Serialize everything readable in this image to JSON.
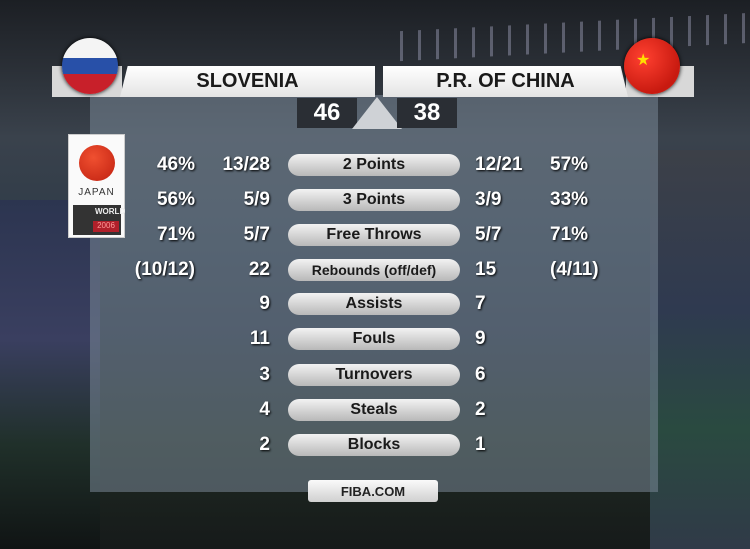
{
  "teams": {
    "left": {
      "name": "SLOVENIA",
      "score": "46"
    },
    "right": {
      "name": "P.R. OF CHINA",
      "score": "38"
    }
  },
  "logo": {
    "country": "JAPAN",
    "event": "WORLD",
    "year": "2006"
  },
  "stats": [
    {
      "label": "2 Points",
      "l_pct": "46%",
      "l_val": "13/28",
      "r_val": "12/21",
      "r_pct": "57%"
    },
    {
      "label": "3 Points",
      "l_pct": "56%",
      "l_val": "5/9",
      "r_val": "3/9",
      "r_pct": "33%"
    },
    {
      "label": "Free Throws",
      "l_pct": "71%",
      "l_val": "5/7",
      "r_val": "5/7",
      "r_pct": "71%"
    },
    {
      "label": "Rebounds (off/def)",
      "l_pct": "(10/12)",
      "l_val": "22",
      "r_val": "15",
      "r_pct": "(4/11)"
    },
    {
      "label": "Assists",
      "l_pct": "",
      "l_val": "9",
      "r_val": "7",
      "r_pct": ""
    },
    {
      "label": "Fouls",
      "l_pct": "",
      "l_val": "11",
      "r_val": "9",
      "r_pct": ""
    },
    {
      "label": "Turnovers",
      "l_pct": "",
      "l_val": "3",
      "r_val": "6",
      "r_pct": ""
    },
    {
      "label": "Steals",
      "l_pct": "",
      "l_val": "4",
      "r_val": "2",
      "r_pct": ""
    },
    {
      "label": "Blocks",
      "l_pct": "",
      "l_val": "2",
      "r_val": "1",
      "r_pct": ""
    }
  ],
  "footer": "FIBA.COM"
}
